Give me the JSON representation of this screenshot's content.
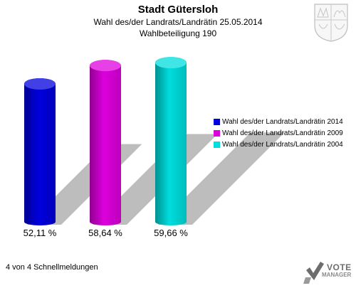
{
  "header": {
    "title": "Stadt Gütersloh",
    "subtitle": "Wahl des/der Landrats/Landrätin 25.05.2014",
    "participation": "Wahlbeteiligung 190"
  },
  "chart_data": {
    "type": "bar",
    "categories": [
      "Wahl des/der Landrats/Landrätin 2014",
      "Wahl des/der Landrats/Landrätin 2009",
      "Wahl des/der Landrats/Landrätin 2004"
    ],
    "values": [
      52.11,
      58.64,
      59.66
    ],
    "value_labels": [
      "52,11 %",
      "58,64 %",
      "59,66 %"
    ],
    "colors": [
      "#0000dd",
      "#dd00dd",
      "#00dddd"
    ],
    "ylim": [
      0,
      65
    ],
    "grid": false,
    "legend_position": "right"
  },
  "footer": {
    "status": "4 von 4 Schnellmeldungen"
  },
  "logo": {
    "line1": "VOTE",
    "line2": "MANAGER"
  },
  "icons": {
    "crest": "coat-of-arms-icon",
    "logo": "vote-manager-logo-icon"
  }
}
